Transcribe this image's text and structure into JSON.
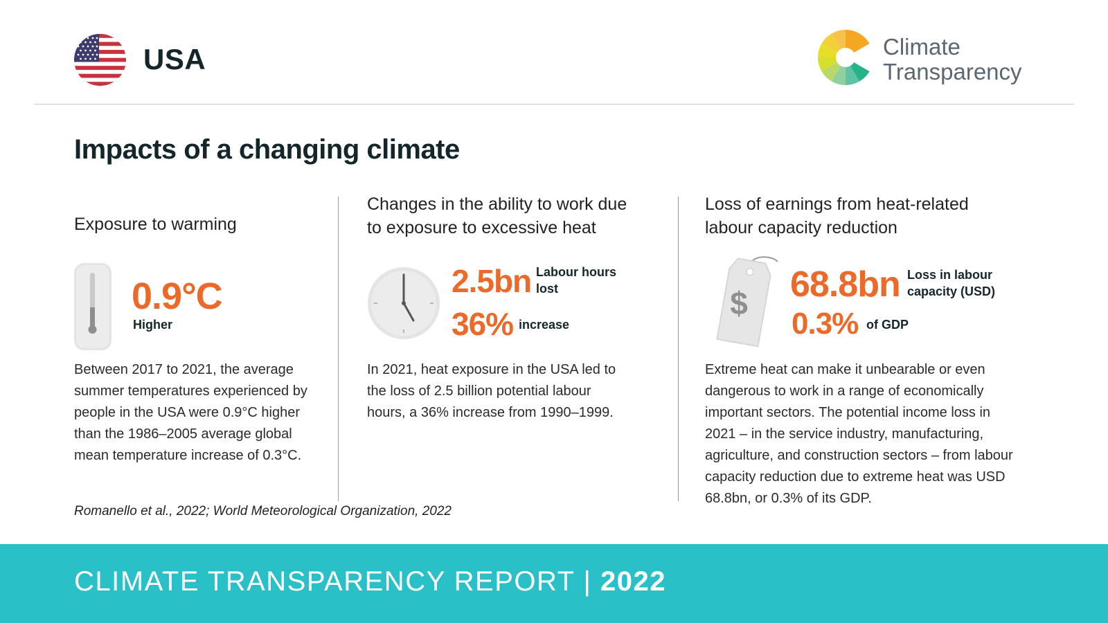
{
  "header": {
    "country": "USA",
    "logo_line1": "Climate",
    "logo_line2": "Transparency"
  },
  "section_title": "Impacts of a changing climate",
  "columns": [
    {
      "heading": "Exposure to warming",
      "icon": "thermometer-icon",
      "stat_value": "0.9°C",
      "stat_label": "Higher",
      "body": "Between 2017 to 2021, the average summer temperatures experienced by people in the USA were 0.9°C higher than the 1986–2005 average global mean temperature increase of 0.3°C."
    },
    {
      "heading_line1": "Changes in the ability to work due",
      "heading_line2": "to exposure to excessive heat",
      "icon": "clock-icon",
      "stat1_value": "2.5bn",
      "stat1_label_line1": "Labour hours",
      "stat1_label_line2": "lost",
      "stat2_value": "36%",
      "stat2_label": "increase",
      "body": "In 2021, heat exposure in the USA led to the loss of 2.5 billion potential labour hours, a 36% increase from 1990–1999."
    },
    {
      "heading_line1": "Loss of earnings from heat-related",
      "heading_line2": "labour capacity reduction",
      "icon": "price-tag-dollar-icon",
      "tag_symbol": "$",
      "stat1_value": "68.8bn",
      "stat1_label_line1": "Loss in labour",
      "stat1_label_line2": "capacity (USD)",
      "stat2_value": "0.3%",
      "stat2_label": "of GDP",
      "body": "Extreme heat can make it unbearable or even dangerous to work in a range of economically important sectors. The potential income loss in 2021 – in the service industry, manufacturing, agriculture, and construction sectors – from labour capacity reduction due to extreme heat was USD 68.8bn, or 0.3% of its GDP."
    }
  ],
  "source": "Romanello et al., 2022; World Meteorological Organization, 2022",
  "footer": {
    "report": "CLIMATE TRANSPARENCY REPORT",
    "separator": "|",
    "year": "2022"
  },
  "colors": {
    "accent_orange": "#eb6a29",
    "footer_teal": "#2ac0c7",
    "heading_dark": "#15262b"
  }
}
